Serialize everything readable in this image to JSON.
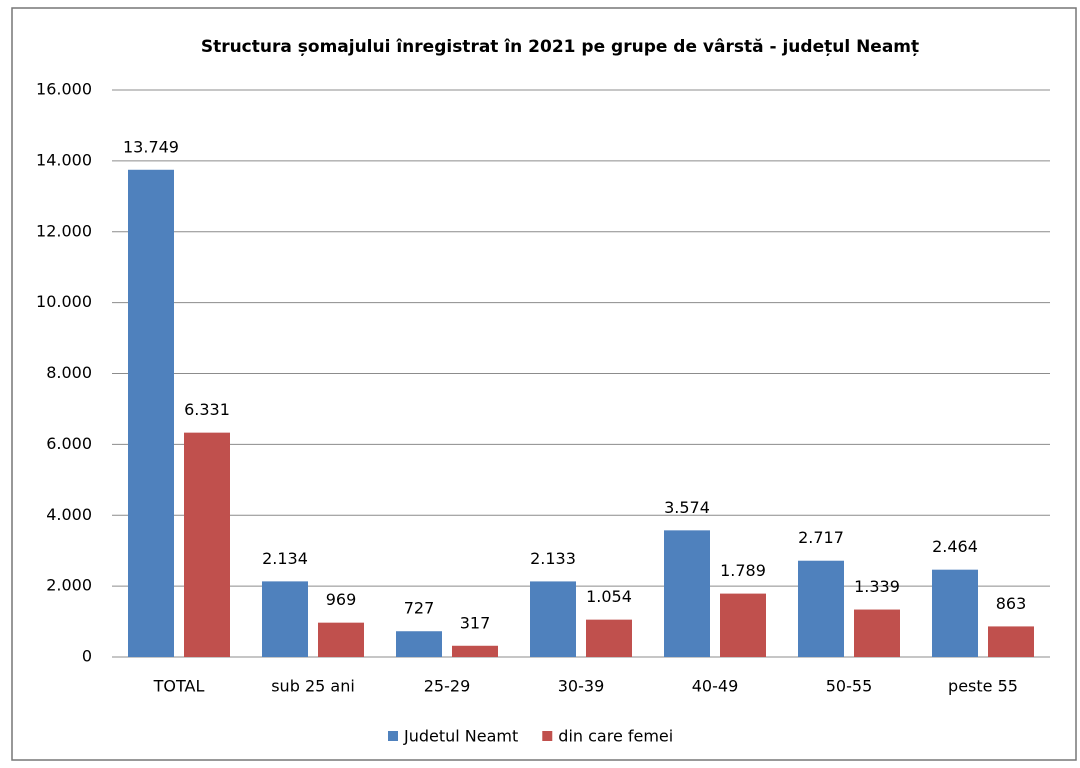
{
  "chart_data": {
    "type": "bar",
    "title": "Structura șomajului înregistrat în 2021 pe grupe de vârstă - județul Neamț",
    "categories": [
      "TOTAL",
      "sub 25 ani",
      "25-29",
      "30-39",
      "40-49",
      "50-55",
      "peste 55"
    ],
    "series": [
      {
        "name": "Judetul Neamt",
        "color": "#4f81bd",
        "values": [
          13749,
          2134,
          727,
          2133,
          3574,
          2717,
          2464
        ],
        "value_labels": [
          "13.749",
          "2.134",
          "727",
          "2.133",
          "3.574",
          "2.717",
          "2.464"
        ]
      },
      {
        "name": "din care femei",
        "color": "#c0504d",
        "values": [
          6331,
          969,
          317,
          1054,
          1789,
          1339,
          863
        ],
        "value_labels": [
          "6.331",
          "969",
          "317",
          "1.054",
          "1.789",
          "1.339",
          "863"
        ]
      }
    ],
    "ylim": [
      0,
      16000
    ],
    "yticks": [
      0,
      {
        "value": 2000,
        "label": "2.000"
      },
      {
        "value": 4000,
        "label": "4.000"
      },
      {
        "value": 6000,
        "label": "6.000"
      },
      {
        "value": 8000,
        "label": "8.000"
      },
      {
        "value": 10000,
        "label": "10.000"
      },
      {
        "value": 12000,
        "label": "12.000"
      },
      {
        "value": 14000,
        "label": "14.000"
      },
      {
        "value": 16000,
        "label": "16.000"
      }
    ],
    "grid": true,
    "legend": "bottom"
  }
}
